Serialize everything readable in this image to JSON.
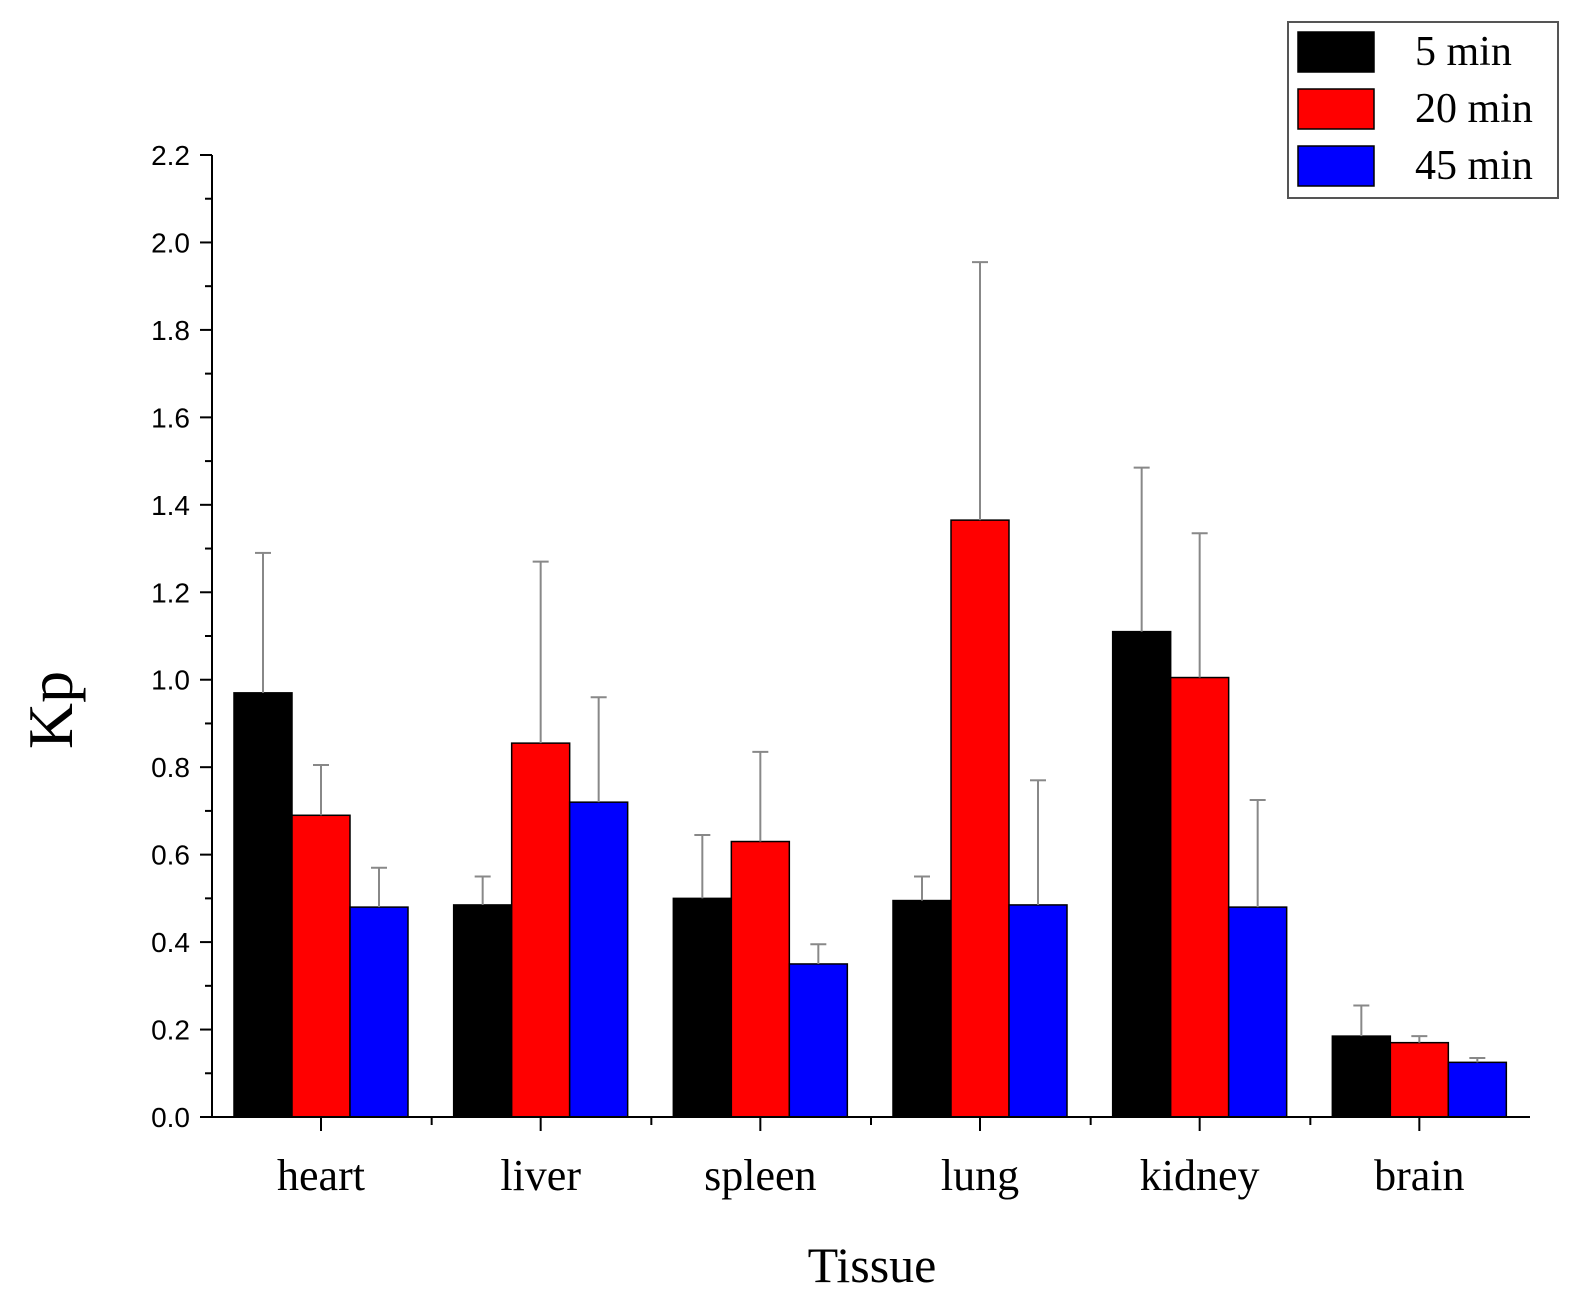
{
  "chart_data": {
    "type": "bar",
    "title": "",
    "xlabel": "Tissue",
    "ylabel": "Kp",
    "ylim": [
      0,
      2.2
    ],
    "yticks": [
      "0.0",
      "0.2",
      "0.4",
      "0.6",
      "0.8",
      "1.0",
      "1.2",
      "1.4",
      "1.6",
      "1.8",
      "2.0",
      "2.2"
    ],
    "categories": [
      "heart",
      "liver",
      "spleen",
      "lung",
      "kidney",
      "brain"
    ],
    "series": [
      {
        "name": "5 min",
        "color": "#000000",
        "values": [
          0.97,
          0.485,
          0.5,
          0.495,
          1.11,
          0.185
        ],
        "errors": [
          0.32,
          0.065,
          0.145,
          0.055,
          0.375,
          0.07
        ]
      },
      {
        "name": "20 min",
        "color": "#ff0000",
        "values": [
          0.69,
          0.855,
          0.63,
          1.365,
          1.005,
          0.17
        ],
        "errors": [
          0.115,
          0.415,
          0.205,
          0.59,
          0.33,
          0.015
        ]
      },
      {
        "name": "45 min",
        "color": "#0000ff",
        "values": [
          0.48,
          0.72,
          0.35,
          0.485,
          0.48,
          0.125
        ],
        "errors": [
          0.09,
          0.24,
          0.045,
          0.285,
          0.245,
          0.01
        ]
      }
    ],
    "legend_position": "top-right",
    "grid": false
  }
}
